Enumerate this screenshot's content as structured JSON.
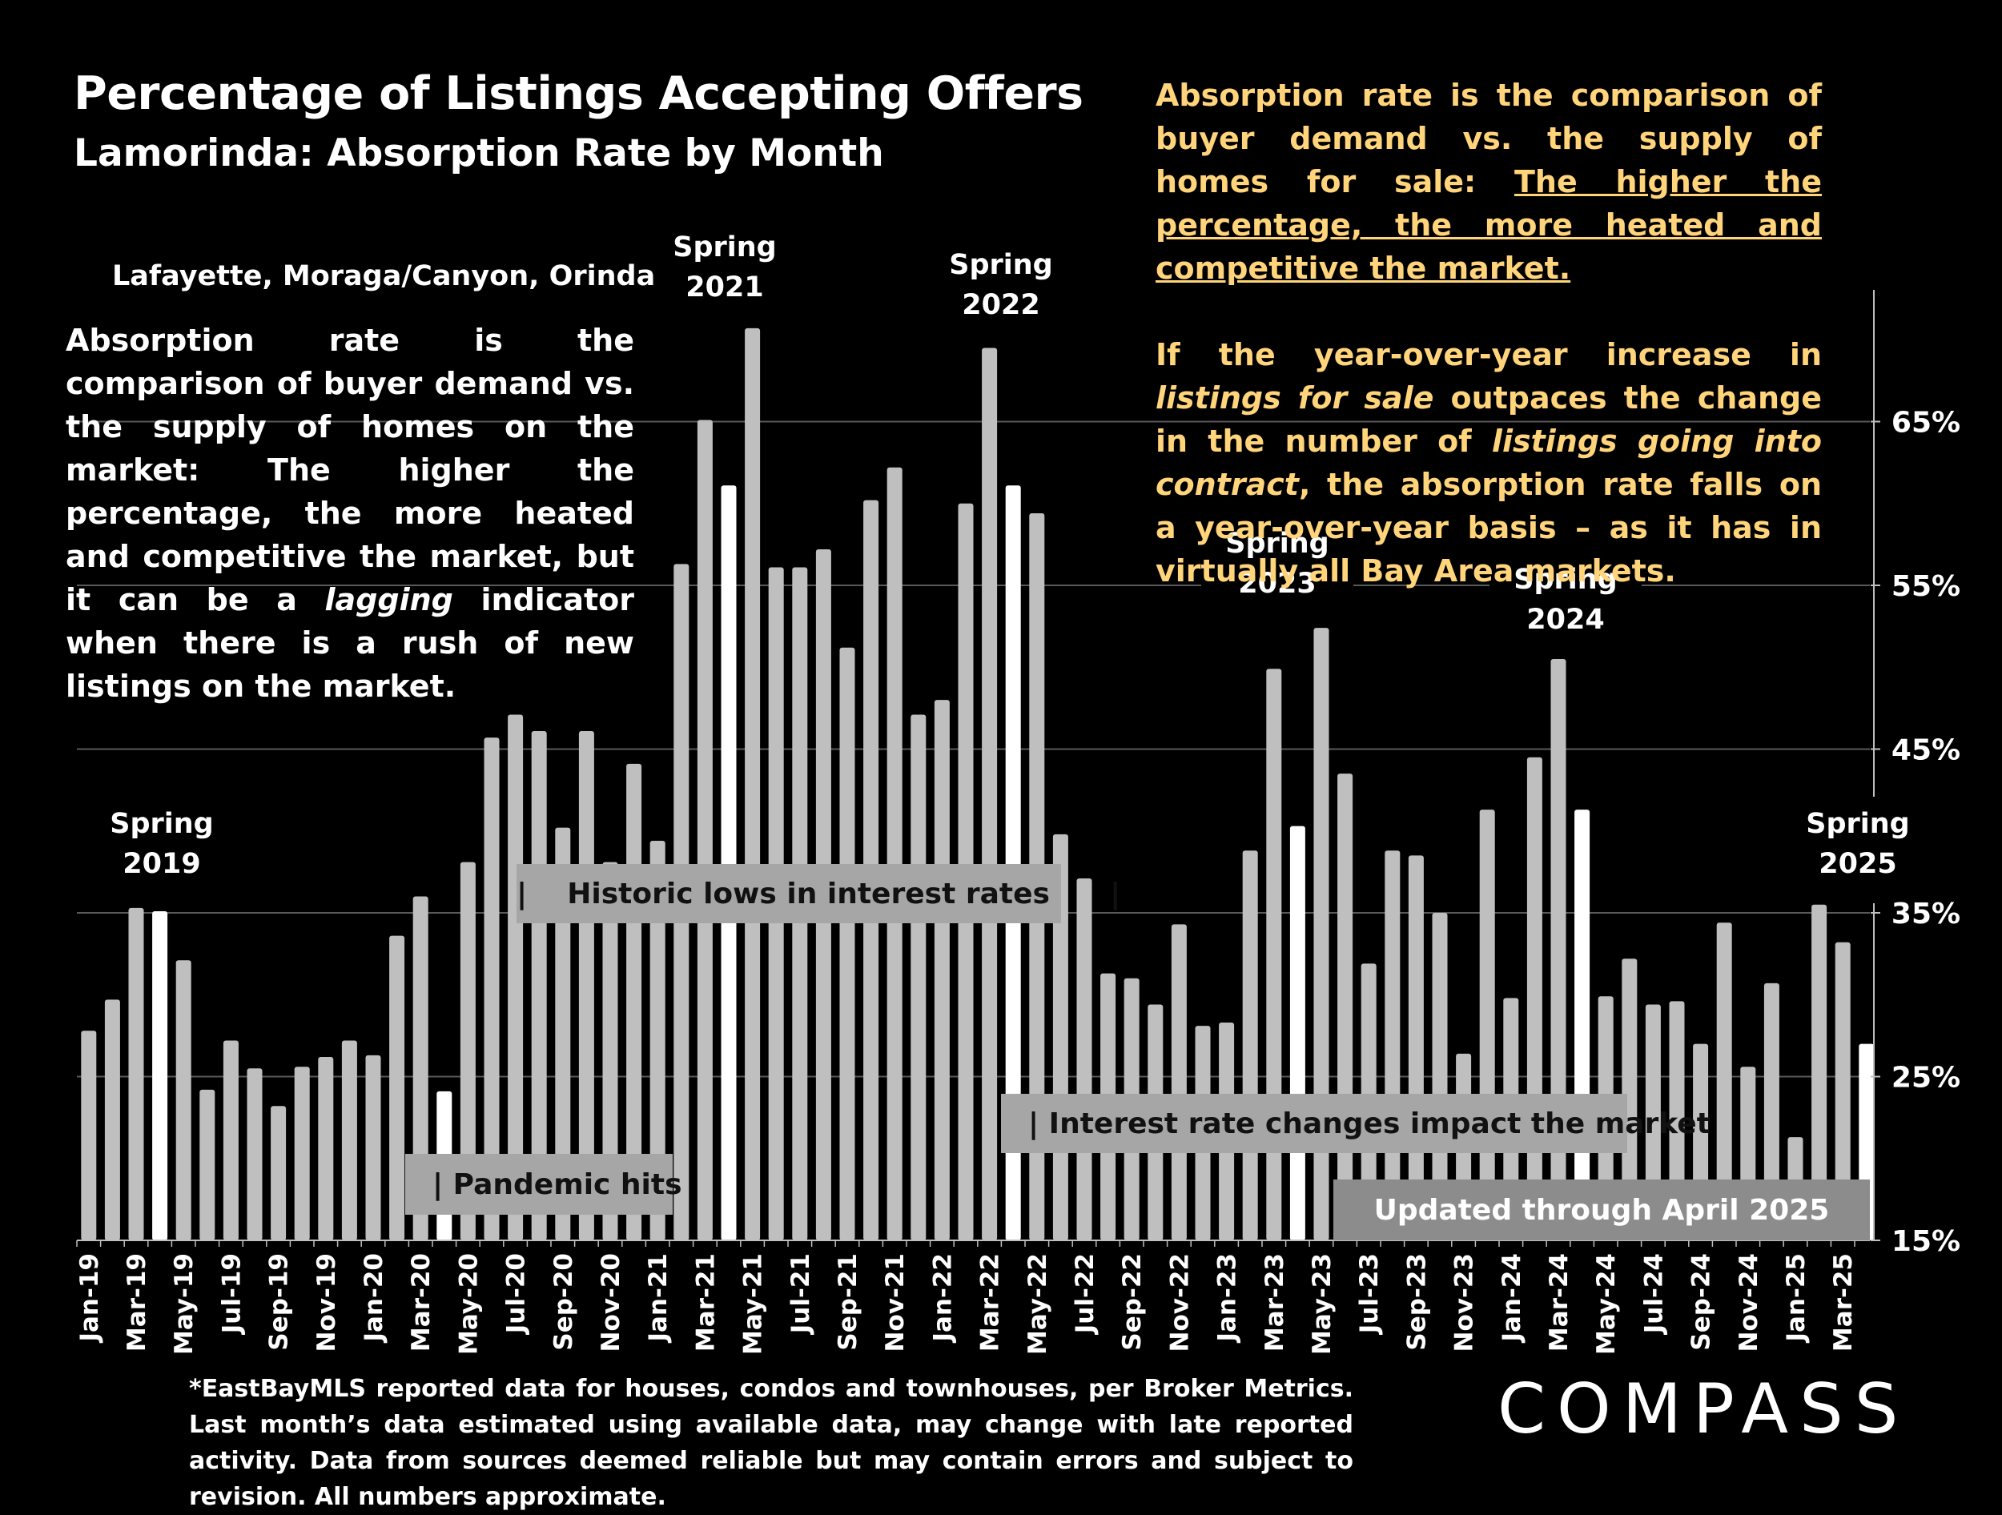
{
  "header": {
    "title": "Percentage of Listings Accepting Offers",
    "subtitle": "Lamorinda:  Absorption Rate by Month",
    "areas": "Lafayette, Moraga/Canyon, Orinda"
  },
  "left_note": {
    "p1": "Absorption rate is the comparison of buyer demand vs. the supply of homes on the market: The higher the percentage, the more heated and competitive the market, but it can be a ",
    "em": "lagging",
    "p2": " indicator when there is a rush of new listings on the market."
  },
  "right_note": {
    "l1": "Absorption rate is the comparison of buyer demand vs. the supply of homes for sale: ",
    "l1_underlined": "The higher the percentage, the more heated and competitive the market.",
    "l2a": "If the year-over-year increase in ",
    "l2_em1": "listings for sale",
    "l2b": " outpaces the change in the number of ",
    "l2_em2": "listings going into contract",
    "l2c": ", the absorption rate falls on a year-over-year basis – as it has in virtually all Bay Area markets."
  },
  "annotations": {
    "historic": "|    Historic lows in interest rates      |",
    "pandemic": "| Pandemic hits",
    "interest": "| Interest rate changes impact the market",
    "updated": "Updated through April 2025"
  },
  "spring_labels": [
    {
      "line1": "Spring",
      "line2": "2019",
      "month": "Apr-19"
    },
    {
      "line1": "Spring",
      "line2": "2021",
      "month": "Apr-21"
    },
    {
      "line1": "Spring",
      "line2": "2022",
      "month": "Apr-22"
    },
    {
      "line1": "Spring",
      "line2": "2023",
      "month": "Apr-23"
    },
    {
      "line1": "Spring",
      "line2": "2024",
      "month": "Apr-24"
    },
    {
      "line1": "Spring",
      "line2": "2025",
      "month": "Apr-25"
    }
  ],
  "footnote": "*EastBayMLS reported data for houses, condos and townhouses, per Broker Metrics. Last month’s data estimated using available data, may change with late reported activity. Data from sources deemed reliable but may contain errors and subject to revision. All numbers approximate.",
  "brand": "COMPASS",
  "colors": {
    "bar": "#bfbfbf",
    "bar_highlight": "#ffffff",
    "note": "#ffd47a",
    "grid": "#595959",
    "background": "#000000"
  },
  "chart_data": {
    "type": "bar",
    "ylim": [
      15,
      72
    ],
    "yticks": [
      "15%",
      "25%",
      "35%",
      "45%",
      "55%",
      "65%"
    ],
    "ytick_values": [
      15,
      25,
      35,
      45,
      55,
      65
    ],
    "ylabel_position": "right",
    "grid": true,
    "categories": [
      "Jan-19",
      "Feb-19",
      "Mar-19",
      "Apr-19",
      "May-19",
      "Jun-19",
      "Jul-19",
      "Aug-19",
      "Sep-19",
      "Oct-19",
      "Nov-19",
      "Dec-19",
      "Jan-20",
      "Feb-20",
      "Mar-20",
      "Apr-20",
      "May-20",
      "Jun-20",
      "Jul-20",
      "Aug-20",
      "Sep-20",
      "Oct-20",
      "Nov-20",
      "Dec-20",
      "Jan-21",
      "Feb-21",
      "Mar-21",
      "Apr-21",
      "May-21",
      "Jun-21",
      "Jul-21",
      "Aug-21",
      "Sep-21",
      "Oct-21",
      "Nov-21",
      "Dec-21",
      "Jan-22",
      "Feb-22",
      "Mar-22",
      "Apr-22",
      "May-22",
      "Jun-22",
      "Jul-22",
      "Aug-22",
      "Sep-22",
      "Oct-22",
      "Nov-22",
      "Dec-22",
      "Jan-23",
      "Feb-23",
      "Mar-23",
      "Apr-23",
      "May-23",
      "Jun-23",
      "Jul-23",
      "Aug-23",
      "Sep-23",
      "Oct-23",
      "Nov-23",
      "Dec-23",
      "Jan-24",
      "Feb-24",
      "Mar-24",
      "Apr-24",
      "May-24",
      "Jun-24",
      "Jul-24",
      "Aug-24",
      "Sep-24",
      "Oct-24",
      "Nov-24",
      "Dec-24",
      "Jan-25",
      "Feb-25",
      "Mar-25",
      "Apr-25"
    ],
    "tick_labels": [
      "Jan-19",
      "Mar-19",
      "May-19",
      "Jul-19",
      "Sep-19",
      "Nov-19",
      "Jan-20",
      "Mar-20",
      "May-20",
      "Jul-20",
      "Sep-20",
      "Nov-20",
      "Jan-21",
      "Mar-21",
      "May-21",
      "Jul-21",
      "Sep-21",
      "Nov-21",
      "Jan-22",
      "Mar-22",
      "May-22",
      "Jul-22",
      "Sep-22",
      "Nov-22",
      "Jan-23",
      "Mar-23",
      "May-23",
      "Jul-23",
      "Sep-23",
      "Nov-23",
      "Jan-24",
      "Mar-24",
      "May-24",
      "Jul-24",
      "Sep-24",
      "Nov-24",
      "Jan-25",
      "Mar-25"
    ],
    "values": [
      27.8,
      29.7,
      35.3,
      35.1,
      32.1,
      24.2,
      27.2,
      25.5,
      23.2,
      25.6,
      26.2,
      27.2,
      26.3,
      33.6,
      36.0,
      24.1,
      38.1,
      45.7,
      47.1,
      46.1,
      40.2,
      46.1,
      38.1,
      44.1,
      39.4,
      56.3,
      65.1,
      61.1,
      70.7,
      56.1,
      56.1,
      57.2,
      51.2,
      60.2,
      62.2,
      47.1,
      48.0,
      60.0,
      69.5,
      61.1,
      59.4,
      39.8,
      37.1,
      31.3,
      31.0,
      29.4,
      34.3,
      28.1,
      28.3,
      38.8,
      49.9,
      40.3,
      52.4,
      43.5,
      31.9,
      38.8,
      38.5,
      35.0,
      26.4,
      41.3,
      29.8,
      44.5,
      50.5,
      41.3,
      29.9,
      32.2,
      29.4,
      29.6,
      27.0,
      34.4,
      25.6,
      30.7,
      21.3,
      35.5,
      33.2,
      27.0
    ],
    "highlight": [
      "Apr-19",
      "Apr-20",
      "Apr-21",
      "Apr-22",
      "Apr-23",
      "Apr-24",
      "Apr-25"
    ]
  }
}
